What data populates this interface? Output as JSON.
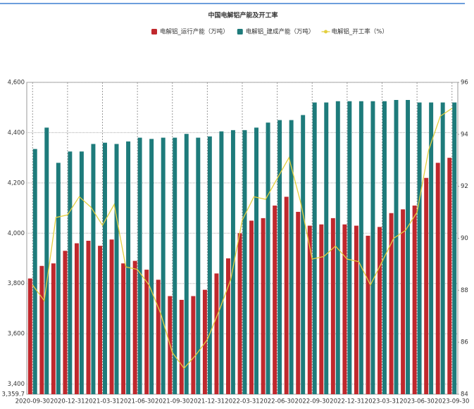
{
  "chart_data": {
    "type": "bar",
    "title": "中国电解铝产能及开工率",
    "categories": [
      "2020-09-30",
      null,
      null,
      "2020-12-31",
      null,
      null,
      "2021-03-31",
      null,
      null,
      "2021-06-30",
      null,
      null,
      "2021-09-30",
      null,
      null,
      "2021-12-31",
      null,
      null,
      "2022-03-31",
      null,
      null,
      "2022-06-30",
      null,
      null,
      "2022-09-30",
      null,
      null,
      "2022-12-31",
      null,
      null,
      "2023-03-31",
      null,
      null,
      "2023-06-30",
      null,
      null,
      "2023-09-30"
    ],
    "series": [
      {
        "name": "电解铝_运行产能（万吨）",
        "color": "#c0282d",
        "type": "bar",
        "values": [
          3820,
          3870,
          3880,
          3930,
          3960,
          3970,
          3950,
          3975,
          3880,
          3890,
          3855,
          3815,
          3750,
          3735,
          3750,
          3775,
          3840,
          3900,
          4000,
          4050,
          4060,
          4110,
          4145,
          4085,
          4030,
          4035,
          4060,
          4035,
          4030,
          3990,
          4025,
          4080,
          4095,
          4110,
          4220,
          4280,
          4300
        ]
      },
      {
        "name": "电解铝_建成产能（万吨）",
        "color": "#1e7b7b",
        "type": "bar",
        "values": [
          4335,
          4420,
          4280,
          4325,
          4325,
          4355,
          4360,
          4355,
          4365,
          4380,
          4375,
          4380,
          4380,
          4395,
          4380,
          4385,
          4405,
          4410,
          4410,
          4420,
          4440,
          4450,
          4450,
          4470,
          4520,
          4520,
          4525,
          4525,
          4525,
          4525,
          4525,
          4530,
          4530,
          4520,
          4520,
          4520,
          4520
        ]
      },
      {
        "name": "电解铝_开工率（%）",
        "color": "#e3cf3f",
        "type": "line",
        "axis": "y2",
        "values": [
          88.2,
          87.6,
          90.8,
          90.9,
          91.6,
          91.2,
          90.5,
          91.3,
          88.9,
          88.8,
          88.2,
          87.1,
          85.6,
          85.0,
          85.5,
          86.1,
          87.2,
          88.4,
          90.7,
          91.6,
          91.5,
          92.3,
          93.1,
          91.4,
          89.2,
          89.3,
          89.7,
          89.2,
          89.1,
          88.2,
          89.1,
          90.0,
          90.3,
          91.0,
          93.4,
          94.7,
          95.0
        ]
      }
    ],
    "ylim": [
      3359.7,
      4600
    ],
    "yticks": [
      {
        "value": 3359.7,
        "label": "3,359.7"
      },
      {
        "value": 3400,
        "label": "3,400"
      },
      {
        "value": 3600,
        "label": "3,600"
      },
      {
        "value": 3800,
        "label": "3,800"
      },
      {
        "value": 4000,
        "label": "4,000"
      },
      {
        "value": 4200,
        "label": "4,200"
      },
      {
        "value": 4400,
        "label": "4,400"
      },
      {
        "value": 4600,
        "label": "4,600"
      }
    ],
    "y2lim": [
      84,
      96
    ],
    "y2ticks": [
      84,
      86,
      88,
      90,
      92,
      94,
      96
    ],
    "grid": true
  }
}
